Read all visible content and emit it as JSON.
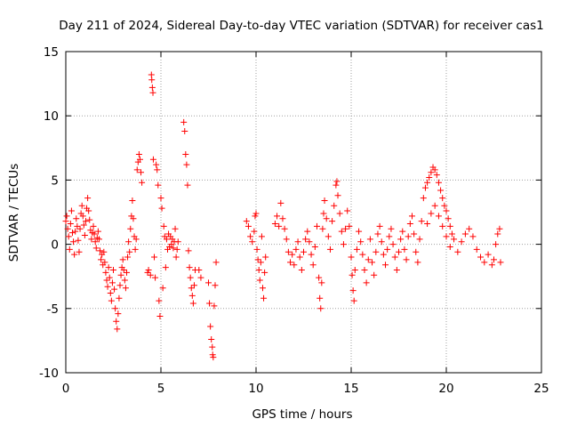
{
  "chart_data": {
    "type": "scatter",
    "title": "Day 211 of 2024, Sidereal Day-to-day VTEC variation (SDTVAR) for receiver cas1",
    "xlabel": "GPS time / hours",
    "ylabel": "SDTVAR / TECUs",
    "xlim": [
      0,
      25
    ],
    "ylim": [
      -10,
      15
    ],
    "xticks": [
      0,
      5,
      10,
      15,
      20,
      25
    ],
    "yticks": [
      -10,
      -5,
      0,
      5,
      10,
      15
    ],
    "xtick_labels": [
      "0",
      "5",
      "10",
      "15",
      "20",
      "25"
    ],
    "ytick_labels": [
      "-10",
      "-5",
      "0",
      "5",
      "10",
      "15"
    ],
    "grid": true,
    "marker": "+",
    "color": "#ff0000",
    "series": [
      {
        "name": "cas1",
        "points": [
          [
            0.0,
            1.8
          ],
          [
            0.05,
            2.2
          ],
          [
            0.1,
            1.2
          ],
          [
            0.15,
            0.6
          ],
          [
            0.2,
            -0.4
          ],
          [
            0.25,
            1.6
          ],
          [
            0.3,
            2.6
          ],
          [
            0.35,
            0.9
          ],
          [
            0.4,
            0.2
          ],
          [
            0.45,
            -0.8
          ],
          [
            0.5,
            1.0
          ],
          [
            0.55,
            2.0
          ],
          [
            0.6,
            1.4
          ],
          [
            0.65,
            0.3
          ],
          [
            0.7,
            -0.6
          ],
          [
            0.75,
            1.2
          ],
          [
            0.8,
            2.4
          ],
          [
            0.85,
            3.0
          ],
          [
            0.9,
            2.2
          ],
          [
            0.95,
            1.5
          ],
          [
            1.0,
            0.7
          ],
          [
            1.05,
            1.8
          ],
          [
            1.1,
            2.8
          ],
          [
            1.15,
            3.6
          ],
          [
            1.2,
            2.6
          ],
          [
            1.25,
            1.9
          ],
          [
            1.3,
            1.1
          ],
          [
            1.35,
            0.4
          ],
          [
            1.4,
            0.9
          ],
          [
            1.45,
            1.4
          ],
          [
            1.5,
            0.8
          ],
          [
            1.55,
            0.2
          ],
          [
            1.6,
            -0.3
          ],
          [
            1.65,
            0.5
          ],
          [
            1.7,
            1.0
          ],
          [
            1.75,
            0.4
          ],
          [
            1.8,
            -0.5
          ],
          [
            1.85,
            -1.2
          ],
          [
            1.9,
            -0.8
          ],
          [
            1.95,
            -1.6
          ],
          [
            2.0,
            -0.6
          ],
          [
            2.05,
            -1.4
          ],
          [
            2.1,
            -2.2
          ],
          [
            2.15,
            -2.8
          ],
          [
            2.2,
            -3.3
          ],
          [
            2.25,
            -1.8
          ],
          [
            2.3,
            -2.6
          ],
          [
            2.35,
            -3.8
          ],
          [
            2.4,
            -4.4
          ],
          [
            2.45,
            -3.0
          ],
          [
            2.5,
            -2.0
          ],
          [
            2.55,
            -3.5
          ],
          [
            2.6,
            -5.0
          ],
          [
            2.65,
            -6.0
          ],
          [
            2.7,
            -6.6
          ],
          [
            2.75,
            -5.4
          ],
          [
            2.8,
            -4.2
          ],
          [
            2.85,
            -3.2
          ],
          [
            2.9,
            -2.4
          ],
          [
            2.95,
            -1.8
          ],
          [
            3.0,
            -1.2
          ],
          [
            3.05,
            -2.0
          ],
          [
            3.1,
            -2.8
          ],
          [
            3.15,
            -3.4
          ],
          [
            3.2,
            -2.2
          ],
          [
            3.25,
            -1.0
          ],
          [
            3.3,
            0.2
          ],
          [
            3.35,
            -0.6
          ],
          [
            3.4,
            1.2
          ],
          [
            3.45,
            2.2
          ],
          [
            3.5,
            3.4
          ],
          [
            3.55,
            2.0
          ],
          [
            3.6,
            0.6
          ],
          [
            3.65,
            -0.4
          ],
          [
            3.7,
            0.4
          ],
          [
            3.75,
            5.8
          ],
          [
            3.8,
            6.4
          ],
          [
            3.85,
            7.0
          ],
          [
            3.9,
            6.6
          ],
          [
            3.95,
            5.6
          ],
          [
            4.0,
            4.8
          ],
          [
            4.3,
            -2.2
          ],
          [
            4.35,
            -2.0
          ],
          [
            4.45,
            -2.4
          ],
          [
            4.5,
            13.2
          ],
          [
            4.52,
            12.8
          ],
          [
            4.55,
            12.2
          ],
          [
            4.58,
            11.8
          ],
          [
            4.6,
            6.6
          ],
          [
            4.65,
            -1.0
          ],
          [
            4.7,
            -2.6
          ],
          [
            4.75,
            6.2
          ],
          [
            4.8,
            5.8
          ],
          [
            4.85,
            4.6
          ],
          [
            4.9,
            -4.4
          ],
          [
            4.95,
            -5.6
          ],
          [
            5.0,
            3.6
          ],
          [
            5.05,
            2.8
          ],
          [
            5.1,
            -3.4
          ],
          [
            5.15,
            1.4
          ],
          [
            5.2,
            0.6
          ],
          [
            5.25,
            -1.8
          ],
          [
            5.3,
            0.4
          ],
          [
            5.35,
            -0.4
          ],
          [
            5.4,
            0.8
          ],
          [
            5.45,
            -0.2
          ],
          [
            5.5,
            0.6
          ],
          [
            5.55,
            0.0
          ],
          [
            5.6,
            0.4
          ],
          [
            5.65,
            -0.3
          ],
          [
            5.7,
            0.2
          ],
          [
            5.75,
            1.2
          ],
          [
            5.8,
            -1.0
          ],
          [
            5.85,
            -0.4
          ],
          [
            5.9,
            0.2
          ],
          [
            6.2,
            9.5
          ],
          [
            6.25,
            8.8
          ],
          [
            6.3,
            7.0
          ],
          [
            6.35,
            6.2
          ],
          [
            6.4,
            4.6
          ],
          [
            6.45,
            -0.5
          ],
          [
            6.5,
            -1.8
          ],
          [
            6.55,
            -2.6
          ],
          [
            6.6,
            -3.4
          ],
          [
            6.65,
            -4.0
          ],
          [
            6.7,
            -4.6
          ],
          [
            6.75,
            -3.2
          ],
          [
            6.8,
            -2.0
          ],
          [
            7.0,
            -2.0
          ],
          [
            7.1,
            -2.6
          ],
          [
            7.5,
            -3.0
          ],
          [
            7.55,
            -4.6
          ],
          [
            7.6,
            -6.4
          ],
          [
            7.65,
            -7.4
          ],
          [
            7.7,
            -8.0
          ],
          [
            7.72,
            -8.6
          ],
          [
            7.75,
            -8.8
          ],
          [
            7.8,
            -4.8
          ],
          [
            7.85,
            -3.2
          ],
          [
            7.9,
            -1.4
          ],
          [
            9.5,
            1.8
          ],
          [
            9.6,
            1.4
          ],
          [
            9.7,
            0.6
          ],
          [
            9.8,
            0.2
          ],
          [
            9.9,
            1.0
          ],
          [
            9.95,
            2.2
          ],
          [
            10.0,
            2.4
          ],
          [
            10.05,
            -0.4
          ],
          [
            10.1,
            -1.2
          ],
          [
            10.15,
            -2.0
          ],
          [
            10.2,
            -2.8
          ],
          [
            10.25,
            -1.4
          ],
          [
            10.3,
            0.6
          ],
          [
            10.35,
            -3.4
          ],
          [
            10.4,
            -4.2
          ],
          [
            10.45,
            -2.2
          ],
          [
            10.5,
            -1.0
          ],
          [
            11.0,
            1.6
          ],
          [
            11.1,
            2.2
          ],
          [
            11.2,
            1.4
          ],
          [
            11.3,
            3.2
          ],
          [
            11.4,
            2.0
          ],
          [
            11.5,
            1.2
          ],
          [
            11.6,
            0.4
          ],
          [
            11.7,
            -0.6
          ],
          [
            11.8,
            -1.4
          ],
          [
            11.9,
            -0.8
          ],
          [
            12.0,
            -1.6
          ],
          [
            12.1,
            -0.4
          ],
          [
            12.2,
            0.2
          ],
          [
            12.3,
            -1.0
          ],
          [
            12.4,
            -2.0
          ],
          [
            12.5,
            -0.6
          ],
          [
            12.6,
            0.4
          ],
          [
            12.7,
            1.0
          ],
          [
            12.8,
            0.2
          ],
          [
            12.9,
            -0.8
          ],
          [
            13.0,
            -1.6
          ],
          [
            13.1,
            -0.2
          ],
          [
            13.2,
            1.4
          ],
          [
            13.3,
            -2.6
          ],
          [
            13.35,
            -4.2
          ],
          [
            13.4,
            -5.0
          ],
          [
            13.45,
            -3.0
          ],
          [
            13.5,
            1.2
          ],
          [
            13.55,
            2.4
          ],
          [
            13.6,
            3.4
          ],
          [
            13.7,
            2.0
          ],
          [
            13.8,
            0.6
          ],
          [
            13.9,
            -0.4
          ],
          [
            14.0,
            1.8
          ],
          [
            14.1,
            3.0
          ],
          [
            14.2,
            4.6
          ],
          [
            14.25,
            4.9
          ],
          [
            14.3,
            3.8
          ],
          [
            14.4,
            2.4
          ],
          [
            14.5,
            1.0
          ],
          [
            14.6,
            0.0
          ],
          [
            14.7,
            1.2
          ],
          [
            14.8,
            2.6
          ],
          [
            14.9,
            1.4
          ],
          [
            15.0,
            -1.0
          ],
          [
            15.05,
            -2.4
          ],
          [
            15.1,
            -3.6
          ],
          [
            15.15,
            -4.4
          ],
          [
            15.2,
            -2.0
          ],
          [
            15.3,
            -0.4
          ],
          [
            15.4,
            1.0
          ],
          [
            15.5,
            0.2
          ],
          [
            15.6,
            -0.8
          ],
          [
            15.7,
            -2.0
          ],
          [
            15.8,
            -3.0
          ],
          [
            15.9,
            -1.2
          ],
          [
            16.0,
            0.4
          ],
          [
            16.1,
            -1.4
          ],
          [
            16.2,
            -2.4
          ],
          [
            16.3,
            -0.6
          ],
          [
            16.4,
            0.8
          ],
          [
            16.5,
            1.4
          ],
          [
            16.6,
            0.2
          ],
          [
            16.7,
            -0.8
          ],
          [
            16.8,
            -1.6
          ],
          [
            16.9,
            -0.4
          ],
          [
            17.0,
            0.6
          ],
          [
            17.1,
            1.2
          ],
          [
            17.2,
            0.0
          ],
          [
            17.3,
            -1.0
          ],
          [
            17.4,
            -2.0
          ],
          [
            17.5,
            -0.6
          ],
          [
            17.6,
            0.4
          ],
          [
            17.7,
            1.0
          ],
          [
            17.8,
            -0.4
          ],
          [
            17.9,
            -1.2
          ],
          [
            18.0,
            0.6
          ],
          [
            18.1,
            1.6
          ],
          [
            18.2,
            2.2
          ],
          [
            18.3,
            0.8
          ],
          [
            18.4,
            -0.6
          ],
          [
            18.5,
            -1.4
          ],
          [
            18.6,
            0.4
          ],
          [
            18.7,
            1.8
          ],
          [
            18.8,
            3.6
          ],
          [
            18.9,
            4.4
          ],
          [
            19.0,
            4.8
          ],
          [
            19.1,
            5.2
          ],
          [
            19.2,
            5.6
          ],
          [
            19.3,
            6.0
          ],
          [
            19.4,
            5.8
          ],
          [
            19.5,
            5.4
          ],
          [
            19.6,
            4.8
          ],
          [
            19.7,
            4.2
          ],
          [
            19.8,
            3.6
          ],
          [
            19.9,
            3.0
          ],
          [
            20.0,
            2.6
          ],
          [
            20.1,
            2.0
          ],
          [
            20.2,
            1.4
          ],
          [
            20.3,
            0.8
          ],
          [
            19.0,
            1.6
          ],
          [
            19.2,
            2.4
          ],
          [
            19.4,
            3.0
          ],
          [
            19.6,
            2.2
          ],
          [
            19.8,
            1.4
          ],
          [
            20.0,
            0.6
          ],
          [
            20.2,
            -0.2
          ],
          [
            20.4,
            0.4
          ],
          [
            20.6,
            -0.6
          ],
          [
            20.8,
            0.2
          ],
          [
            21.0,
            0.8
          ],
          [
            21.2,
            1.2
          ],
          [
            21.4,
            0.6
          ],
          [
            21.6,
            -0.4
          ],
          [
            21.8,
            -1.0
          ],
          [
            22.0,
            -1.4
          ],
          [
            22.2,
            -0.8
          ],
          [
            22.4,
            -1.6
          ],
          [
            22.5,
            -1.2
          ],
          [
            22.6,
            0.0
          ],
          [
            22.7,
            0.8
          ],
          [
            22.8,
            1.2
          ],
          [
            22.85,
            -1.4
          ]
        ]
      }
    ]
  }
}
